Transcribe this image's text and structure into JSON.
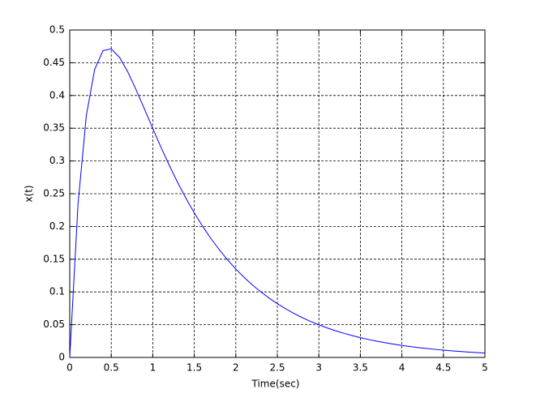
{
  "chart_data": {
    "type": "line",
    "xlabel": "Time(sec)",
    "ylabel": "x(t)",
    "x": [
      0,
      0.1,
      0.2,
      0.3,
      0.4,
      0.5,
      0.6,
      0.7,
      0.8,
      0.9,
      1,
      1.1,
      1.2,
      1.3,
      1.4,
      1.5,
      1.6,
      1.7,
      1.8,
      1.9,
      2,
      2.1,
      2.2,
      2.3,
      2.4,
      2.5,
      2.6,
      2.7,
      2.8,
      2.9,
      3,
      3.1,
      3.2,
      3.3,
      3.4,
      3.5,
      3.6,
      3.7,
      3.8,
      3.9,
      4,
      4.1,
      4.2,
      4.3,
      4.4,
      4.5,
      4.6,
      4.7,
      4.8,
      4.9,
      5
    ],
    "values": [
      0,
      0.2345,
      0.3694,
      0.4396,
      0.4684,
      0.4712,
      0.4581,
      0.4358,
      0.4085,
      0.3793,
      0.3496,
      0.3206,
      0.293,
      0.267,
      0.2429,
      0.2206,
      0.2002,
      0.1816,
      0.1646,
      0.1491,
      0.135,
      0.1222,
      0.1106,
      0.1002,
      0.0907,
      0.0821,
      0.0743,
      0.0672,
      0.0608,
      0.055,
      0.0498,
      0.045,
      0.0408,
      0.0369,
      0.0334,
      0.0302,
      0.0273,
      0.0247,
      0.0224,
      0.0202,
      0.0183,
      0.0166,
      0.015,
      0.0136,
      0.0123,
      0.0111,
      0.0101,
      0.0091,
      0.0082,
      0.0074,
      0.0067
    ],
    "color": "#0000ff",
    "xlim": [
      0,
      5
    ],
    "xticks": [
      0,
      0.5,
      1,
      1.5,
      2,
      2.5,
      3,
      3.5,
      4,
      4.5,
      5
    ],
    "ylim": [
      0,
      0.5
    ],
    "yticks": [
      0,
      0.05,
      0.1,
      0.15,
      0.2,
      0.25,
      0.3,
      0.35,
      0.4,
      0.45,
      0.5
    ],
    "grid": true
  }
}
